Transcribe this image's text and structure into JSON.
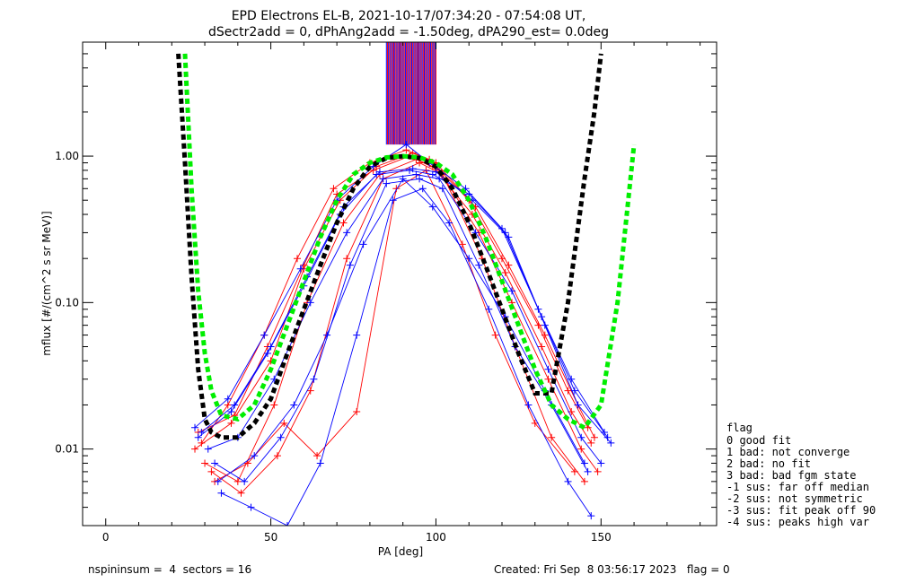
{
  "chart_data": {
    "type": "line",
    "title": "EPD Electrons EL-B, 2021-10-17/07:34:20 - 07:54:08 UT,",
    "subtitle": "dSectr2add = 0, dPhAng2add = -1.50deg, dPA290_est=   0.0deg",
    "xlabel": "PA [deg]",
    "ylabel": "mflux [#/(cm^2 s sr MeV)]",
    "xlim": [
      -7,
      185
    ],
    "ylim": [
      0.003,
      6.0
    ],
    "yscale": "log",
    "xticks": [
      0,
      50,
      100,
      150
    ],
    "xtick_labels": [
      "0",
      "50",
      "100",
      "150"
    ],
    "yticks": [
      0.01,
      0.1,
      1.0
    ],
    "ytick_labels": [
      "0.01",
      "0.10",
      "1.00"
    ],
    "grid": false,
    "series": [
      {
        "color": "#ff0000",
        "marker": "+",
        "style": "thin-line",
        "curves": [
          {
            "x": [
              27,
              38,
              50,
              60,
              71,
              82,
              93,
              100,
              112,
              122,
              133,
              143,
              148
            ],
            "y": [
              0.01,
              0.015,
              0.04,
              0.17,
              0.5,
              0.85,
              1.05,
              0.9,
              0.45,
              0.18,
              0.06,
              0.02,
              0.012
            ]
          },
          {
            "x": [
              28,
              39,
              49,
              60,
              70,
              81,
              92,
              99,
              111,
              121,
              132,
              141,
              147
            ],
            "y": [
              0.013,
              0.017,
              0.05,
              0.18,
              0.55,
              0.8,
              1.0,
              0.85,
              0.4,
              0.16,
              0.05,
              0.018,
              0.011
            ]
          },
          {
            "x": [
              30,
              40,
              51,
              61,
              72,
              83,
              94,
              101,
              113,
              123,
              134,
              144,
              149
            ],
            "y": [
              0.008,
              0.006,
              0.02,
              0.1,
              0.35,
              0.75,
              0.95,
              0.8,
              0.3,
              0.1,
              0.03,
              0.01,
              0.007
            ]
          },
          {
            "x": [
              32,
              41,
              52,
              62,
              73,
              84,
              95,
              102,
              114,
              124,
              135,
              145
            ],
            "y": [
              0.007,
              0.005,
              0.009,
              0.025,
              0.2,
              0.7,
              0.9,
              0.75,
              0.2,
              0.05,
              0.012,
              0.006
            ]
          },
          {
            "x": [
              29,
              37,
              48,
              58,
              69,
              80,
              91,
              98,
              110,
              120,
              131,
              140,
              146
            ],
            "y": [
              0.011,
              0.02,
              0.06,
              0.2,
              0.6,
              0.9,
              1.1,
              0.95,
              0.5,
              0.2,
              0.07,
              0.025,
              0.014
            ]
          },
          {
            "x": [
              33,
              43,
              54,
              64,
              76,
              88,
              97,
              108,
              118,
              130,
              142
            ],
            "y": [
              0.006,
              0.008,
              0.015,
              0.009,
              0.018,
              0.6,
              0.8,
              0.25,
              0.06,
              0.015,
              0.007
            ]
          }
        ]
      },
      {
        "color": "#0000ff",
        "marker": "+",
        "style": "thin-line",
        "curves": [
          {
            "x": [
              28,
              38,
              49,
              60,
              71,
              82,
              92,
              99,
              110,
              121,
              132,
              142,
              152
            ],
            "y": [
              0.012,
              0.018,
              0.045,
              0.13,
              0.4,
              0.75,
              0.8,
              0.75,
              0.55,
              0.3,
              0.08,
              0.025,
              0.012
            ]
          },
          {
            "x": [
              29,
              39,
              50,
              61,
              72,
              83,
              93,
              100,
              111,
              122,
              133,
              143,
              153
            ],
            "y": [
              0.013,
              0.02,
              0.05,
              0.15,
              0.45,
              0.78,
              0.82,
              0.78,
              0.5,
              0.28,
              0.07,
              0.02,
              0.011
            ]
          },
          {
            "x": [
              31,
              40,
              51,
              62,
              73,
              84,
              94,
              101,
              112,
              123,
              134,
              144,
              150
            ],
            "y": [
              0.01,
              0.012,
              0.03,
              0.1,
              0.3,
              0.7,
              0.75,
              0.7,
              0.3,
              0.12,
              0.035,
              0.012,
              0.008
            ]
          },
          {
            "x": [
              33,
              42,
              53,
              63,
              74,
              85,
              95,
              102,
              113,
              124,
              135,
              146
            ],
            "y": [
              0.008,
              0.006,
              0.012,
              0.03,
              0.18,
              0.65,
              0.7,
              0.6,
              0.18,
              0.05,
              0.02,
              0.007
            ]
          },
          {
            "x": [
              35,
              44,
              55,
              65,
              76,
              87,
              96,
              104,
              116,
              128,
              140,
              147
            ],
            "y": [
              0.005,
              0.004,
              0.003,
              0.008,
              0.06,
              0.5,
              0.6,
              0.35,
              0.09,
              0.02,
              0.006,
              0.0035
            ]
          },
          {
            "x": [
              27,
              37,
              48,
              59,
              70,
              81,
              91,
              98,
              109,
              120,
              131,
              141,
              151
            ],
            "y": [
              0.014,
              0.022,
              0.06,
              0.17,
              0.5,
              0.85,
              1.2,
              0.9,
              0.6,
              0.32,
              0.09,
              0.03,
              0.013
            ]
          },
          {
            "x": [
              34,
              45,
              57,
              67,
              78,
              90,
              99,
              110,
              121,
              133,
              145
            ],
            "y": [
              0.006,
              0.009,
              0.02,
              0.06,
              0.25,
              0.7,
              0.45,
              0.2,
              0.08,
              0.025,
              0.008
            ]
          }
        ]
      },
      {
        "name": "",
        "color": "#000000",
        "style": "thick-dashed",
        "x": [
          22,
          24,
          26,
          28,
          30,
          32,
          35,
          40,
          45,
          50,
          55,
          60,
          65,
          70,
          75,
          80,
          85,
          90,
          95,
          100,
          105,
          110,
          115,
          120,
          125,
          130,
          135,
          140,
          145,
          148,
          150
        ],
        "y": [
          5.0,
          0.9,
          0.15,
          0.035,
          0.016,
          0.013,
          0.012,
          0.012,
          0.015,
          0.022,
          0.045,
          0.09,
          0.18,
          0.35,
          0.6,
          0.85,
          0.97,
          1.0,
          0.97,
          0.85,
          0.6,
          0.35,
          0.18,
          0.09,
          0.045,
          0.024,
          0.024,
          0.1,
          0.7,
          2.0,
          5.0
        ]
      },
      {
        "name": "",
        "color": "#00ee00",
        "style": "thick-dashed",
        "x": [
          24,
          26,
          28,
          30,
          32,
          35,
          40,
          45,
          50,
          55,
          60,
          65,
          70,
          75,
          80,
          85,
          90,
          95,
          100,
          105,
          110,
          115,
          120,
          125,
          130,
          135,
          140,
          145,
          150,
          155,
          160
        ],
        "y": [
          5.0,
          0.6,
          0.12,
          0.045,
          0.025,
          0.017,
          0.016,
          0.02,
          0.035,
          0.07,
          0.14,
          0.28,
          0.5,
          0.75,
          0.9,
          0.98,
          1.0,
          0.98,
          0.9,
          0.75,
          0.5,
          0.28,
          0.14,
          0.07,
          0.035,
          0.02,
          0.016,
          0.014,
          0.02,
          0.1,
          1.2
        ]
      }
    ],
    "saturated_band": {
      "x_range": [
        85,
        100
      ],
      "y_range": [
        1.2,
        6.0
      ],
      "colors": [
        "#0000ff",
        "#ff0000"
      ]
    },
    "legend": {
      "position": "right",
      "title": "flag",
      "entries": [
        " 0 good fit",
        " 1 bad: not converge",
        " 2 bad: no fit",
        " 3 bad: bad fgm state",
        "-1 sus: far off median",
        "-2 sus: not symmetric",
        "-3 sus: fit peak off 90",
        "-4 sus: peaks high var"
      ]
    }
  },
  "footer": {
    "left": "nspininsum =  4  sectors = 16",
    "right": "Created: Fri Sep  8 03:56:17 2023   flag = 0"
  }
}
